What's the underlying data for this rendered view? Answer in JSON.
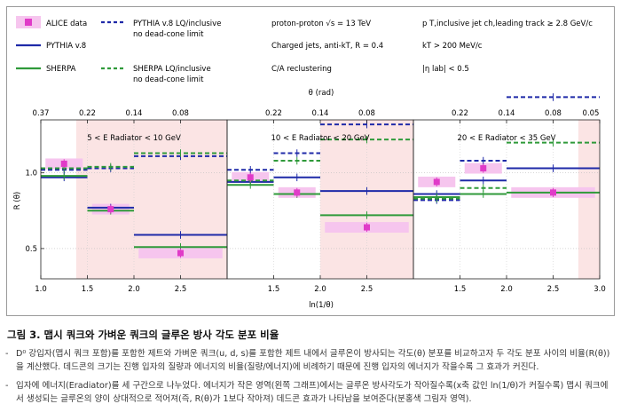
{
  "legend": {
    "items": [
      {
        "label": "ALICE data"
      },
      {
        "label": "PYTHIA v.8 LQ/inclusive",
        "sub": "no dead-cone limit"
      },
      {
        "label": "PYTHIA v.8"
      },
      {
        "label": "SHERPA"
      },
      {
        "label": "SHERPA LQ/inclusive",
        "sub": "no dead-cone limit"
      }
    ],
    "info": [
      "proton-proton √s = 13 TeV",
      "Charged jets, anti-kT, R = 0.4",
      "C/A reclustering",
      "p T,inclusive jet ch,leading track ≥ 2.8 GeV/c",
      "kT > 200 MeV/c",
      "|η lab| < 0.5"
    ]
  },
  "colors": {
    "alice": "#e03bc8",
    "alice_band": "#f6c5ee",
    "pythia": "#1f2aa8",
    "sherpa": "#2f9a3a",
    "deadcone_shade": "#fbe4e4"
  },
  "chart_data": {
    "type": "line",
    "layout": "three panels sharing a y axis",
    "xlabel": "ln(1/θ)",
    "ylabel": "R (θ)",
    "top_axis_label": "θ (rad)",
    "ylim": [
      0.3,
      1.35
    ],
    "y_ticks": [
      0.5,
      1.0
    ],
    "panels": [
      {
        "title": "5 < E Radiator < 10 GeV",
        "xlim": [
          1.0,
          3.0
        ],
        "x_ticks": [
          "1.0",
          "1.5",
          "2.0",
          "2.5"
        ],
        "top_ticks": [
          "0.37",
          "0.22",
          "0.14",
          "0.08"
        ],
        "dead_cone_region": [
          1.38,
          3.0
        ],
        "bins": [
          [
            1.0,
            1.5
          ],
          [
            1.5,
            2.0
          ],
          [
            2.0,
            3.0
          ]
        ],
        "series": [
          {
            "name": "ALICE data",
            "x": [
              1.25,
              1.75,
              2.5
            ],
            "y": [
              1.06,
              0.76,
              0.47
            ]
          },
          {
            "name": "PYTHIA v.8",
            "y": [
              0.97,
              0.77,
              0.59
            ]
          },
          {
            "name": "SHERPA",
            "y": [
              0.98,
              0.75,
              0.51
            ]
          },
          {
            "name": "PYTHIA v.8 LQ/inclusive",
            "y": [
              1.02,
              1.03,
              1.11
            ]
          },
          {
            "name": "SHERPA LQ/inclusive",
            "y": [
              1.03,
              1.04,
              1.13
            ]
          }
        ]
      },
      {
        "title": "10 < E Radiator < 20 GeV",
        "xlim": [
          1.0,
          3.0
        ],
        "x_ticks": [
          "1.5",
          "2.0",
          "2.5"
        ],
        "top_ticks": [
          "0.22",
          "0.14",
          "0.08"
        ],
        "dead_cone_region": [
          2.0,
          3.0
        ],
        "bins": [
          [
            1.0,
            1.5
          ],
          [
            1.5,
            2.0
          ],
          [
            2.0,
            3.0
          ]
        ],
        "series": [
          {
            "name": "ALICE data",
            "x": [
              1.25,
              1.75,
              2.5
            ],
            "y": [
              0.97,
              0.87,
              0.64
            ]
          },
          {
            "name": "PYTHIA v.8",
            "y": [
              0.94,
              0.97,
              0.88
            ]
          },
          {
            "name": "SHERPA",
            "y": [
              0.92,
              0.86,
              0.72
            ]
          },
          {
            "name": "PYTHIA v.8 LQ/inclusive",
            "y": [
              1.02,
              1.13,
              1.32
            ]
          },
          {
            "name": "SHERPA LQ/inclusive",
            "y": [
              0.95,
              1.08,
              1.22
            ]
          }
        ]
      },
      {
        "title": "20 < E Radiator < 35 GeV",
        "xlim": [
          1.0,
          3.0
        ],
        "x_ticks": [
          "1.5",
          "2.0",
          "2.5",
          "3.0"
        ],
        "top_ticks": [
          "0.22",
          "0.14",
          "0.08",
          "0.05"
        ],
        "dead_cone_region": [
          2.77,
          3.0
        ],
        "bins": [
          [
            1.0,
            1.5
          ],
          [
            1.5,
            2.0
          ],
          [
            2.0,
            3.0
          ]
        ],
        "series": [
          {
            "name": "ALICE data",
            "x": [
              1.25,
              1.75,
              2.5
            ],
            "y": [
              0.94,
              1.03,
              0.87
            ]
          },
          {
            "name": "PYTHIA v.8",
            "y": [
              0.86,
              0.95,
              1.03
            ]
          },
          {
            "name": "SHERPA",
            "y": [
              0.84,
              0.86,
              0.87
            ]
          },
          {
            "name": "PYTHIA v.8 LQ/inclusive",
            "y": [
              0.82,
              1.08,
              1.5
            ]
          },
          {
            "name": "SHERPA LQ/inclusive",
            "y": [
              0.83,
              0.9,
              1.2
            ]
          }
        ]
      }
    ]
  },
  "caption": {
    "title": "그림 3. 맵시 쿼크와 가벼운 쿼크의 글루온 방사 각도 분포 비율",
    "items": [
      "D⁰ 강입자(맵시 쿼크 포함)를 포함한 제트와 가벼운 쿼크(u, d, s)를 포함한 제트 내에서 글루온이 방사되는 각도(θ) 분포를 비교하고자 두 각도 분포 사이의 비율(R(θ))을 계산했다. 데드콘의 크기는 진행 입자의 질량과 에너지의 비율(질량/에너지)에 비례하기 때문에 진행 입자의 에너지가 작을수록 그 효과가 커진다.",
      "입자에 에너지(Eradiator)를 세 구간으로 나누었다. 에너지가 작은 영역(왼쪽 그래프)에서는 글루온 방사각도가 작아질수록(x축 값인 ln(1/θ)가 커질수록) 맵시 쿼크에서 생성되는 글루온의 양이 상대적으로 적어져(즉, R(θ)가 1보다 작아져) 데드콘 효과가 나타남을 보여준다(분홍색 그림자 영역)."
    ]
  }
}
